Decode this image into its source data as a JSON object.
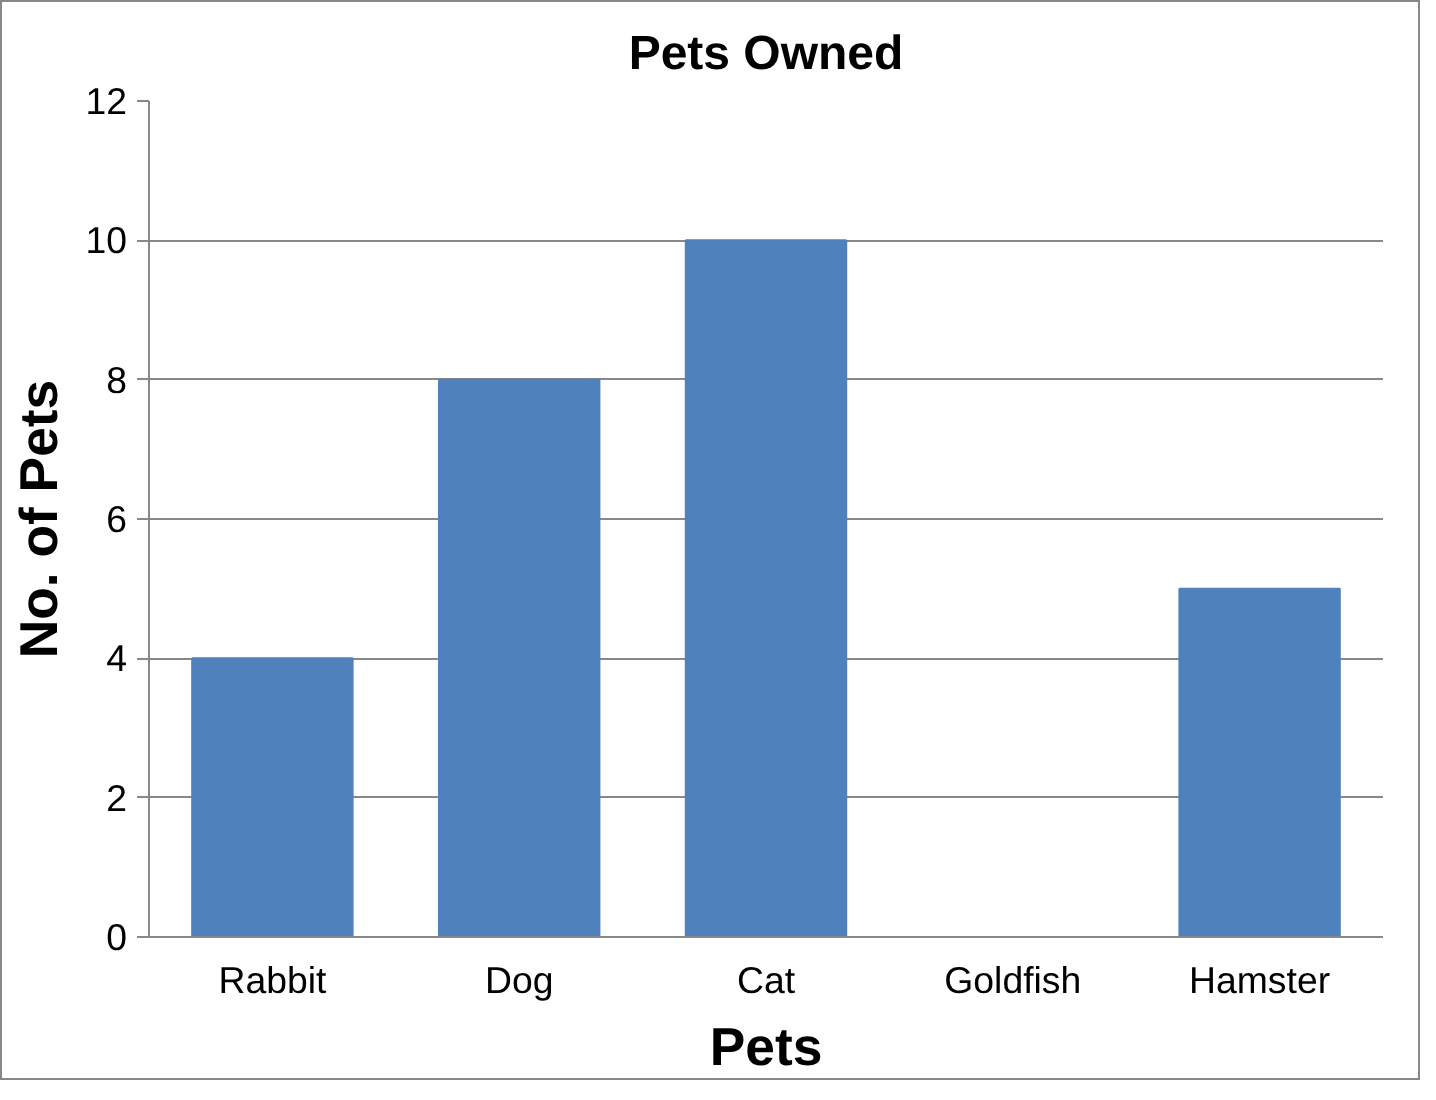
{
  "chart_data": {
    "type": "bar",
    "title": "Pets Owned",
    "xlabel": "Pets",
    "ylabel": "No. of Pets",
    "categories": [
      "Rabbit",
      "Dog",
      "Cat",
      "Goldfish",
      "Hamster"
    ],
    "values": [
      4,
      8,
      10,
      0,
      5
    ],
    "color": "#4f81bd",
    "ylim": [
      0,
      12
    ],
    "yticks": [
      0,
      2,
      4,
      6,
      8,
      10,
      12
    ],
    "grid": "y"
  }
}
